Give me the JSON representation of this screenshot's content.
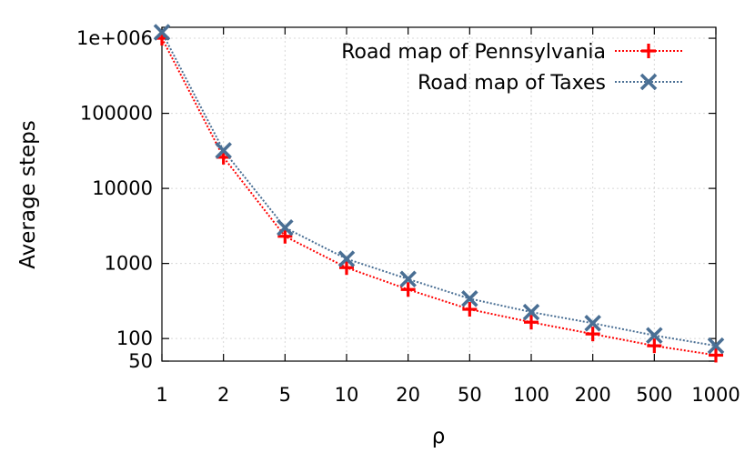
{
  "chart_data": {
    "type": "line",
    "title": "",
    "xlabel": "ρ",
    "ylabel": "Average steps",
    "x_scale": "categorical",
    "y_scale": "log",
    "categories": [
      "1",
      "2",
      "5",
      "10",
      "20",
      "50",
      "100",
      "200",
      "500",
      "1000"
    ],
    "ylim": [
      50,
      1400000
    ],
    "yticks": [
      {
        "value": 50,
        "label": "50"
      },
      {
        "value": 100,
        "label": "100"
      },
      {
        "value": 1000,
        "label": "1000"
      },
      {
        "value": 10000,
        "label": "10000"
      },
      {
        "value": 100000,
        "label": "100000"
      },
      {
        "value": 1000000,
        "label": "1e+006"
      }
    ],
    "grid": true,
    "legend_position": "top-right",
    "series": [
      {
        "name": "Road map of Pennsylvania",
        "color": "#ff0000",
        "marker": "plus",
        "line_style": "dotted",
        "values": [
          1000000,
          26000,
          2300,
          880,
          450,
          245,
          165,
          115,
          80,
          60
        ]
      },
      {
        "name": "Road map of Taxes",
        "color": "#4a6f94",
        "marker": "cross",
        "line_style": "dotted",
        "values": [
          1200000,
          32000,
          3000,
          1150,
          620,
          340,
          225,
          160,
          110,
          80
        ]
      }
    ]
  }
}
